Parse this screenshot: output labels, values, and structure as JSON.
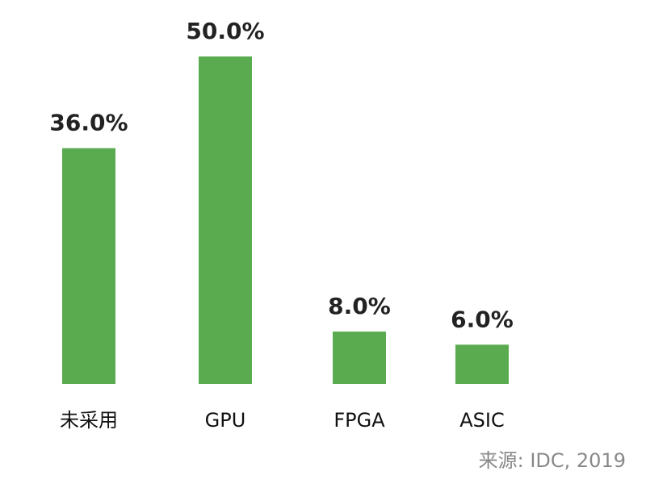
{
  "chart_data": {
    "type": "bar",
    "categories": [
      "未采用",
      "GPU",
      "FPGA",
      "ASIC"
    ],
    "values": [
      36,
      50,
      8,
      6
    ],
    "value_labels": [
      "36.0%",
      "50.0%",
      "8.0%",
      "6.0%"
    ],
    "color": "#5aab50",
    "source": "来源: IDC, 2019"
  }
}
